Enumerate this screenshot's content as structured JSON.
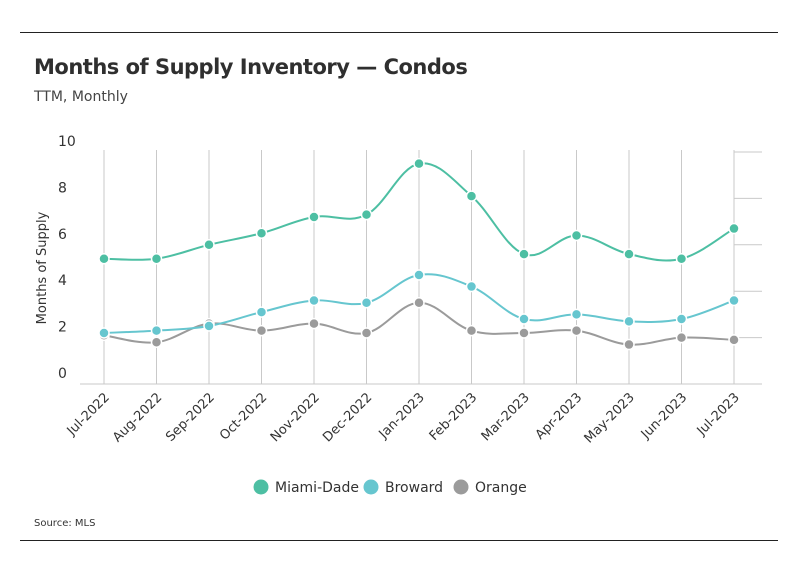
{
  "header": {
    "title": "Months of Supply Inventory — Condos",
    "subtitle": "TTM, Monthly"
  },
  "footer": {
    "source": "Source: MLS"
  },
  "chart_data": {
    "type": "line",
    "title": "Months of Supply Inventory — Condos",
    "subtitle": "TTM, Monthly",
    "xlabel": "",
    "ylabel": "Months of Supply",
    "ylim": [
      0,
      10
    ],
    "yticks": [
      0,
      2,
      4,
      6,
      8,
      10
    ],
    "grid": "vertical",
    "legend_position": "bottom-center",
    "categories": [
      "Jul-2022",
      "Aug-2022",
      "Sep-2022",
      "Oct-2022",
      "Nov-2022",
      "Dec-2022",
      "Jan-2023",
      "Feb-2023",
      "Mar-2023",
      "Apr-2023",
      "May-2023",
      "Jun-2023",
      "Jul-2023"
    ],
    "series": [
      {
        "name": "Miami-Dade",
        "color": "#4dbfa3",
        "values": [
          5.4,
          5.4,
          6.0,
          6.5,
          7.2,
          7.3,
          9.5,
          8.1,
          5.6,
          6.4,
          5.6,
          5.4,
          6.7
        ]
      },
      {
        "name": "Broward",
        "color": "#66c6cf",
        "values": [
          2.2,
          2.3,
          2.5,
          3.1,
          3.6,
          3.5,
          4.7,
          4.2,
          2.8,
          3.0,
          2.7,
          2.8,
          3.6
        ]
      },
      {
        "name": "Orange",
        "color": "#9b9b9b",
        "values": [
          2.1,
          1.8,
          2.6,
          2.3,
          2.6,
          2.2,
          3.5,
          2.3,
          2.2,
          2.3,
          1.7,
          2.0,
          1.9
        ]
      }
    ],
    "source": "Source: MLS"
  }
}
